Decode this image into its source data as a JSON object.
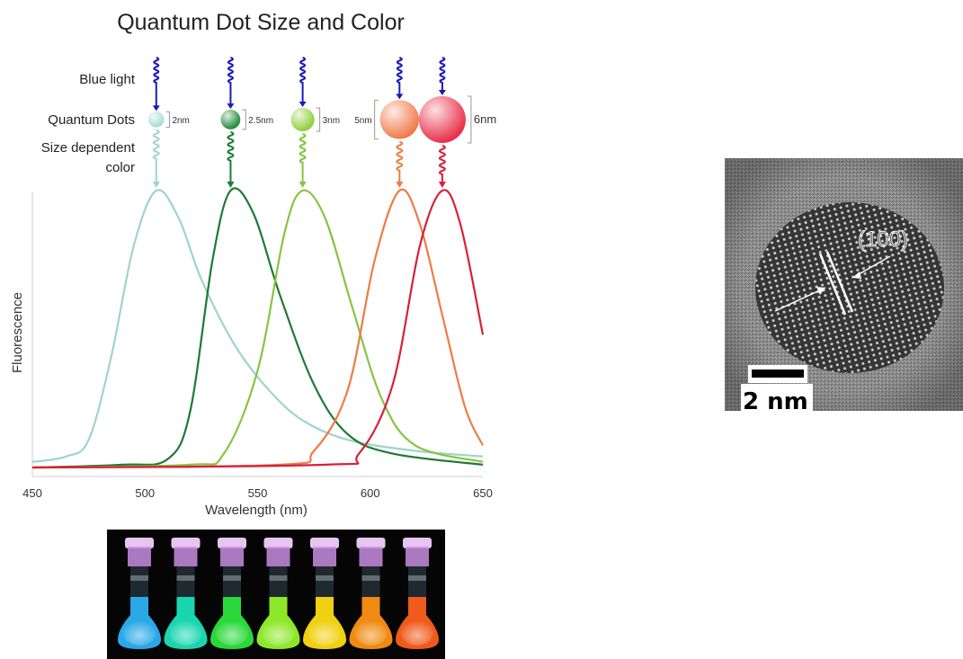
{
  "figure": {
    "title": "Quantum Dot Size and Color",
    "row_labels": {
      "blue_light": "Blue light",
      "quantum_dots": "Quantum Dots",
      "size_dependent_line1": "Size dependent",
      "size_dependent_line2": "color"
    },
    "dots": [
      {
        "size_label": "2nm",
        "size_nm": 2,
        "color": "#a8dcd6"
      },
      {
        "size_label": "2.5nm",
        "size_nm": 2.5,
        "color": "#1e8a3a"
      },
      {
        "size_label": "3nm",
        "size_nm": 3,
        "color": "#8ccf3a"
      },
      {
        "size_label": "5nm",
        "size_nm": 5,
        "color": "#f07a4a"
      },
      {
        "size_label": "6nm",
        "size_nm": 6,
        "color": "#e8304a"
      }
    ],
    "excitation_color": "#1a1ab8",
    "tem": {
      "annotation": "(100)",
      "scale_bar_label": "2 nm"
    },
    "vials": {
      "count": 7,
      "colors": [
        "#2aa8e8",
        "#19d6b0",
        "#2ad83a",
        "#8ee82a",
        "#f0d010",
        "#f08a12",
        "#f05a1a"
      ]
    }
  },
  "chart_data": {
    "type": "line",
    "title": "",
    "xlabel": "Wavelength (nm)",
    "ylabel": "Fluorescence",
    "xlim": [
      450,
      650
    ],
    "ylim": [
      0,
      1
    ],
    "x_ticks": [
      450,
      500,
      550,
      600,
      650
    ],
    "grid": false,
    "series": [
      {
        "color": "#9fd4cc",
        "peak_nm": 505,
        "points": [
          [
            450,
            0.02
          ],
          [
            465,
            0.04
          ],
          [
            475,
            0.1
          ],
          [
            485,
            0.4
          ],
          [
            495,
            0.8
          ],
          [
            505,
            1.0
          ],
          [
            515,
            0.9
          ],
          [
            525,
            0.68
          ],
          [
            540,
            0.44
          ],
          [
            555,
            0.28
          ],
          [
            570,
            0.17
          ],
          [
            590,
            0.1
          ],
          [
            620,
            0.06
          ],
          [
            650,
            0.04
          ]
        ]
      },
      {
        "color": "#1e7a35",
        "peak_nm": 538,
        "points": [
          [
            450,
            0.0
          ],
          [
            490,
            0.01
          ],
          [
            510,
            0.03
          ],
          [
            520,
            0.2
          ],
          [
            530,
            0.75
          ],
          [
            538,
            1.0
          ],
          [
            548,
            0.92
          ],
          [
            560,
            0.62
          ],
          [
            575,
            0.3
          ],
          [
            590,
            0.12
          ],
          [
            610,
            0.05
          ],
          [
            650,
            0.01
          ]
        ]
      },
      {
        "color": "#86c540",
        "peak_nm": 570,
        "points": [
          [
            450,
            0.0
          ],
          [
            520,
            0.01
          ],
          [
            535,
            0.05
          ],
          [
            550,
            0.35
          ],
          [
            562,
            0.85
          ],
          [
            570,
            1.0
          ],
          [
            580,
            0.9
          ],
          [
            592,
            0.58
          ],
          [
            605,
            0.25
          ],
          [
            620,
            0.08
          ],
          [
            650,
            0.02
          ]
        ]
      },
      {
        "color": "#f07a45",
        "peak_nm": 613,
        "points": [
          [
            450,
            0.0
          ],
          [
            560,
            0.01
          ],
          [
            575,
            0.06
          ],
          [
            590,
            0.28
          ],
          [
            602,
            0.75
          ],
          [
            613,
            1.0
          ],
          [
            622,
            0.88
          ],
          [
            632,
            0.55
          ],
          [
            642,
            0.22
          ],
          [
            650,
            0.08
          ]
        ]
      },
      {
        "color": "#d8203a",
        "peak_nm": 632,
        "points": [
          [
            450,
            0.0
          ],
          [
            580,
            0.01
          ],
          [
            595,
            0.05
          ],
          [
            610,
            0.3
          ],
          [
            622,
            0.8
          ],
          [
            632,
            1.0
          ],
          [
            640,
            0.88
          ],
          [
            650,
            0.48
          ]
        ]
      }
    ]
  }
}
